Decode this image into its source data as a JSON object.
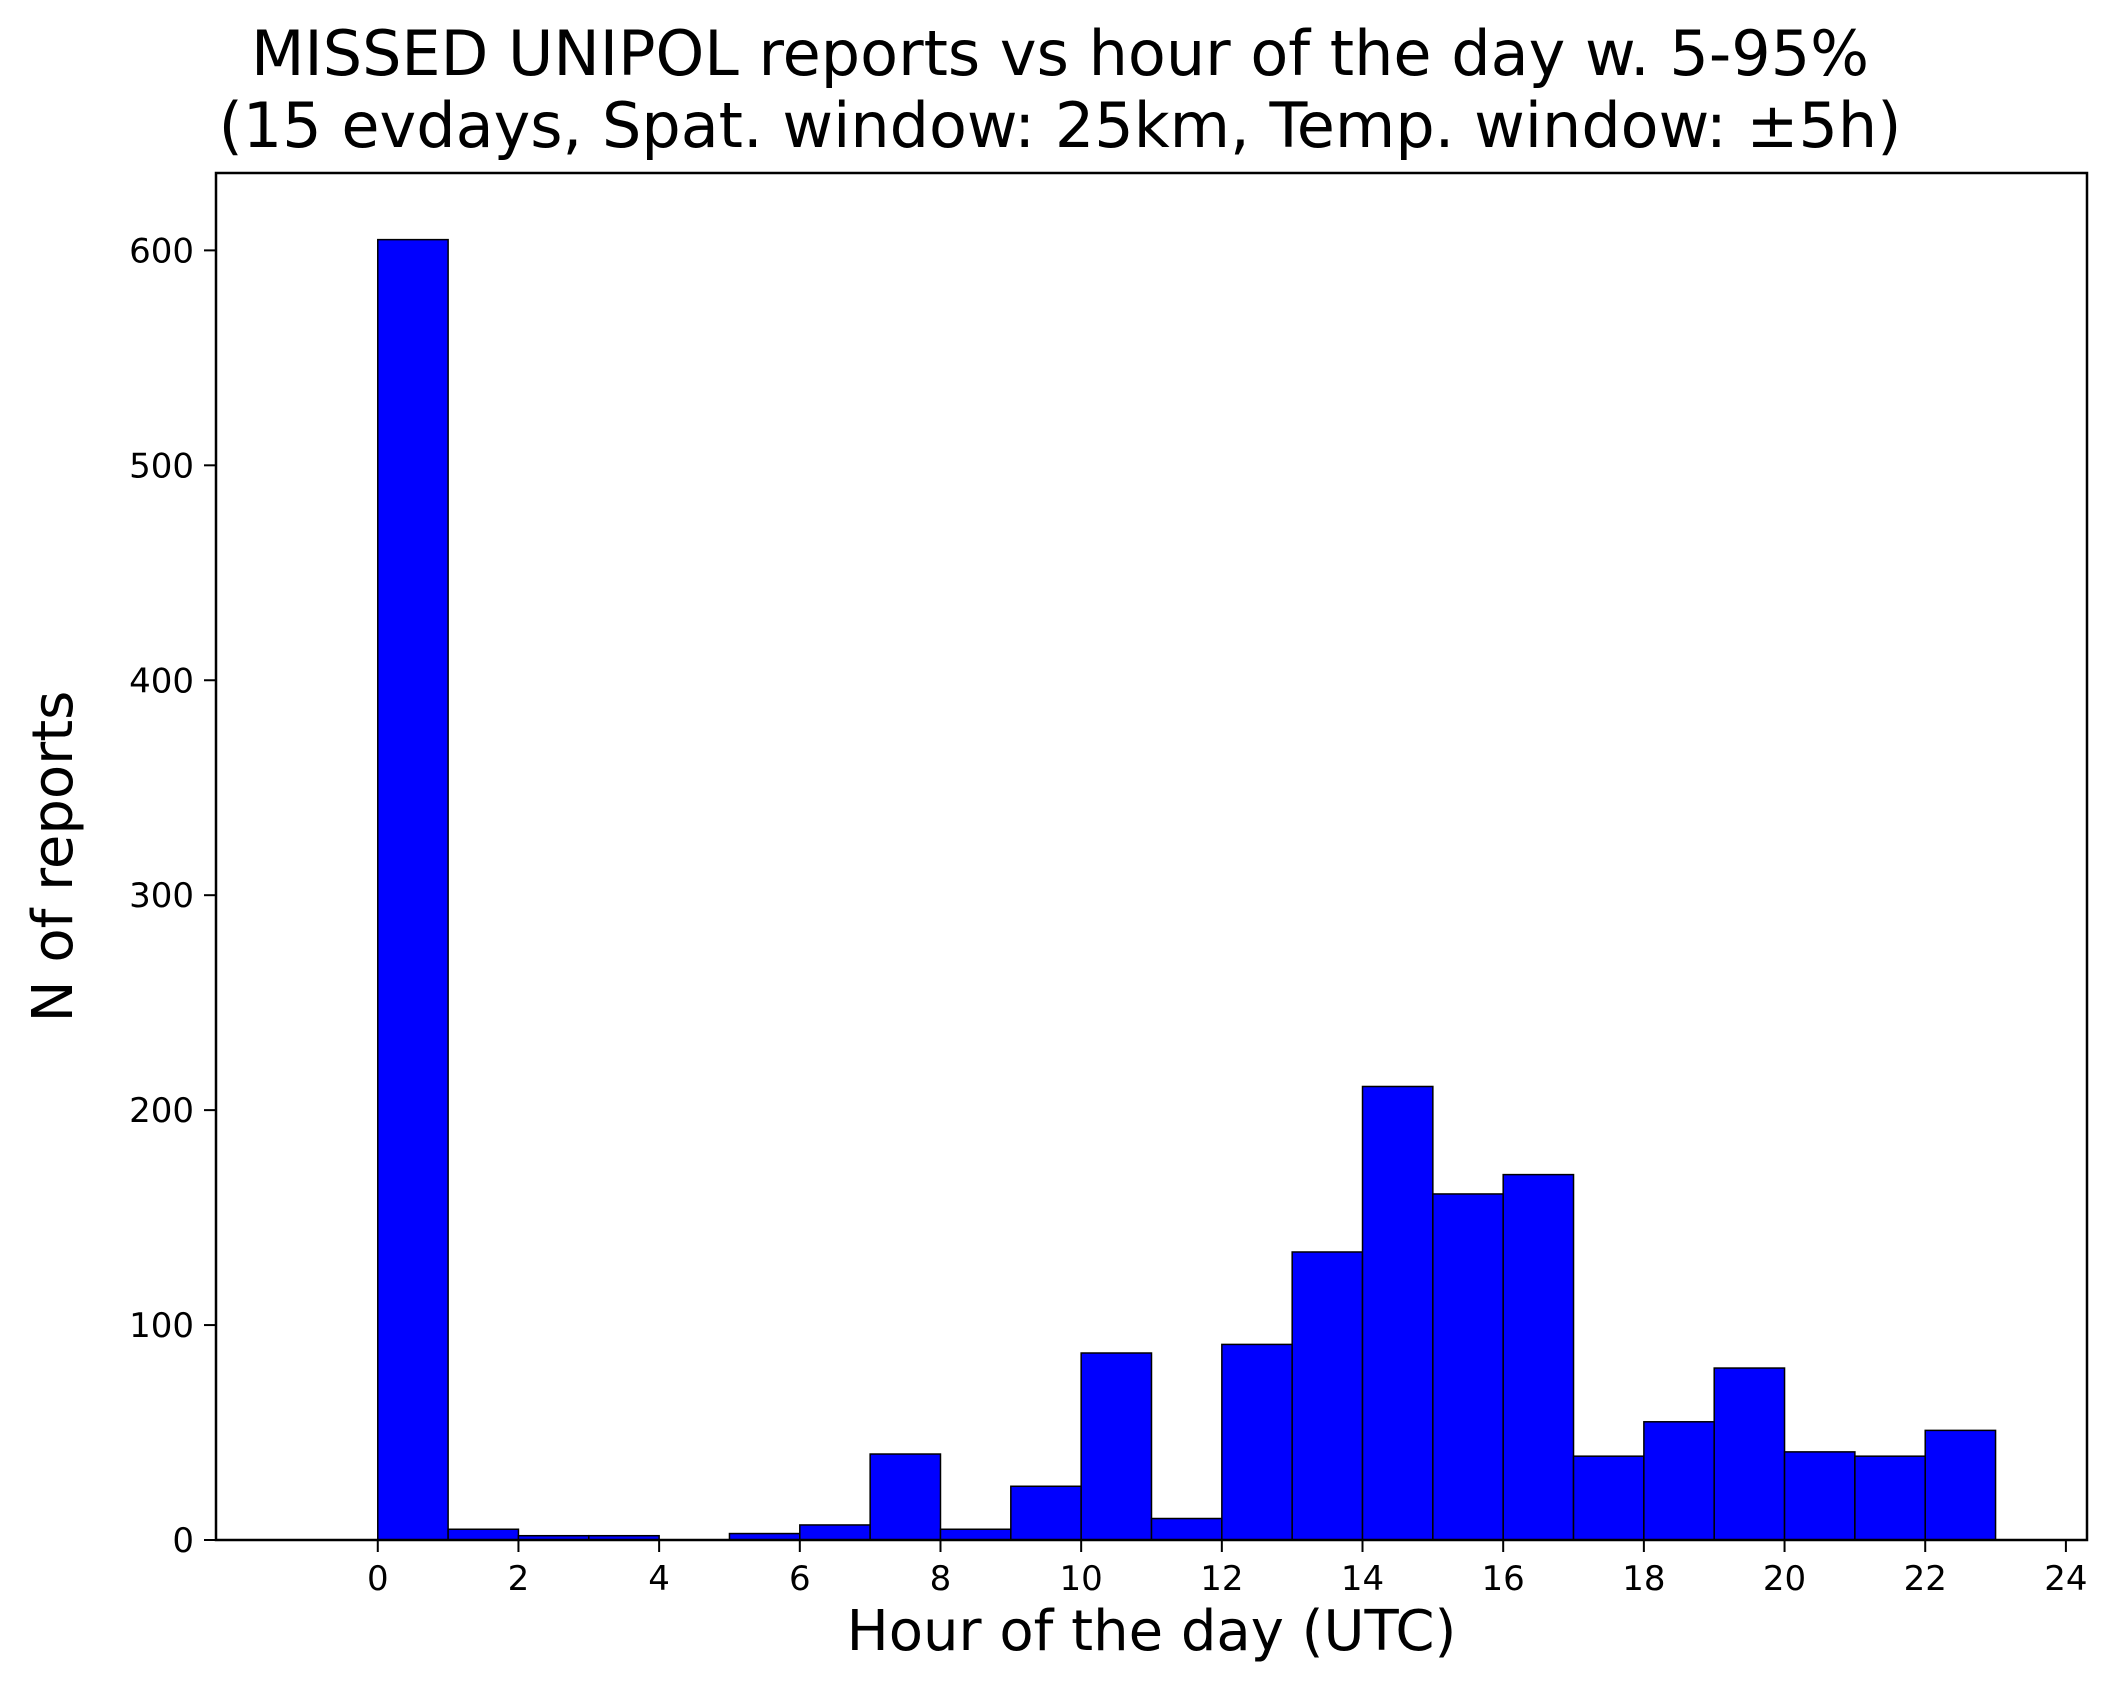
{
  "chart_data": {
    "type": "bar",
    "title": "MISSED UNIPOL reports vs hour of the day w. 5-95%",
    "subtitle": "(15 evdays, Spat. window: 25km, Temp. window: ±5h)",
    "xlabel": "Hour of the day (UTC)",
    "ylabel": "N of reports",
    "xlim": [
      -2.3,
      24.3
    ],
    "ylim": [
      0,
      636
    ],
    "xticks": [
      0,
      2,
      4,
      6,
      8,
      10,
      12,
      14,
      16,
      18,
      20,
      22,
      24
    ],
    "yticks": [
      0,
      100,
      200,
      300,
      400,
      500,
      600
    ],
    "bin_edges": [
      0,
      1,
      2,
      3,
      4,
      5,
      6,
      7,
      8,
      9,
      10,
      11,
      12,
      13,
      14,
      15,
      16,
      17,
      18,
      19,
      20,
      21,
      22,
      23
    ],
    "values": [
      605,
      5,
      2,
      2,
      0,
      3,
      7,
      40,
      5,
      25,
      87,
      10,
      91,
      134,
      211,
      161,
      170,
      39,
      55,
      80,
      41,
      39,
      51
    ],
    "bar_color": "#0000ff",
    "edge_color": "#000000",
    "grid": false,
    "legend": false
  }
}
